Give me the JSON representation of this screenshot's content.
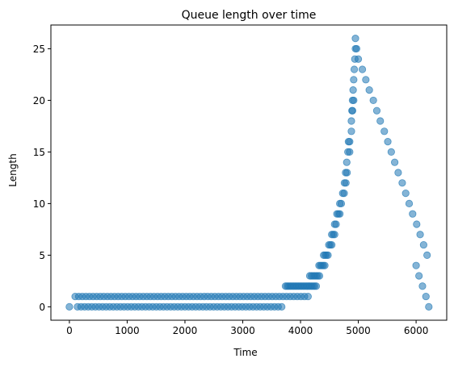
{
  "chart_data": {
    "type": "scatter",
    "title": "Queue length over time",
    "xlabel": "Time",
    "ylabel": "Length",
    "xlim": [
      -320,
      6530
    ],
    "ylim": [
      -1.3,
      27.3
    ],
    "xticks": [
      0,
      1000,
      2000,
      3000,
      4000,
      5000,
      6000
    ],
    "yticks": [
      0,
      5,
      10,
      15,
      20,
      25
    ],
    "grid": false,
    "legend": "none",
    "marker_color": "#1f77b4",
    "marker_alpha": 0.55,
    "series": [
      {
        "segments": [
          {
            "x_start": 0,
            "x_end": 0,
            "step": 1,
            "y": 0
          },
          {
            "x_start": 100,
            "x_end": 4130,
            "step": 62,
            "y": 1
          },
          {
            "x_start": 140,
            "x_end": 3700,
            "step": 62,
            "y": 0
          },
          {
            "x_start": 3740,
            "x_end": 4280,
            "step": 28,
            "y": 2
          },
          {
            "x_start": 4160,
            "x_end": 4330,
            "step": 28,
            "y": 3
          },
          {
            "x_start": 4320,
            "x_end": 4420,
            "step": 25,
            "y": 4
          },
          {
            "x_start": 4400,
            "x_end": 4480,
            "step": 25,
            "y": 5
          },
          {
            "x_start": 4490,
            "x_end": 4540,
            "step": 25,
            "y": 6
          },
          {
            "x_start": 4540,
            "x_end": 4590,
            "step": 25,
            "y": 7
          },
          {
            "x_start": 4590,
            "x_end": 4615,
            "step": 25,
            "y": 8
          },
          {
            "x_start": 4630,
            "x_end": 4680,
            "step": 25,
            "y": 9
          },
          {
            "x_start": 4680,
            "x_end": 4705,
            "step": 25,
            "y": 10
          },
          {
            "x_start": 4730,
            "x_end": 4755,
            "step": 25,
            "y": 11
          },
          {
            "x_start": 4760,
            "x_end": 4785,
            "step": 25,
            "y": 12
          },
          {
            "x_start": 4780,
            "x_end": 4805,
            "step": 25,
            "y": 13
          }
        ],
        "points": [
          [
            4800,
            14
          ],
          [
            4820,
            15
          ],
          [
            4850,
            15
          ],
          [
            4830,
            16
          ],
          [
            4850,
            16
          ],
          [
            4880,
            17
          ],
          [
            4880,
            18
          ],
          [
            4890,
            19
          ],
          [
            4900,
            19
          ],
          [
            4900,
            20
          ],
          [
            4920,
            20
          ],
          [
            4910,
            21
          ],
          [
            4920,
            22
          ],
          [
            4930,
            23
          ],
          [
            4940,
            24
          ],
          [
            4950,
            25
          ],
          [
            4970,
            25
          ],
          [
            4950,
            26
          ],
          [
            5000,
            24
          ],
          [
            5070,
            23
          ],
          [
            5130,
            22
          ],
          [
            5190,
            21
          ],
          [
            5260,
            20
          ],
          [
            5320,
            19
          ],
          [
            5380,
            18
          ],
          [
            5450,
            17
          ],
          [
            5510,
            16
          ],
          [
            5570,
            15
          ],
          [
            5630,
            14
          ],
          [
            5690,
            13
          ],
          [
            5760,
            12
          ],
          [
            5820,
            11
          ],
          [
            5880,
            10
          ],
          [
            5940,
            9
          ],
          [
            6010,
            8
          ],
          [
            6070,
            7
          ],
          [
            6130,
            6
          ],
          [
            6190,
            5
          ],
          [
            6000,
            4
          ],
          [
            6050,
            3
          ],
          [
            6110,
            2
          ],
          [
            6170,
            1
          ],
          [
            6220,
            0
          ]
        ]
      }
    ]
  }
}
